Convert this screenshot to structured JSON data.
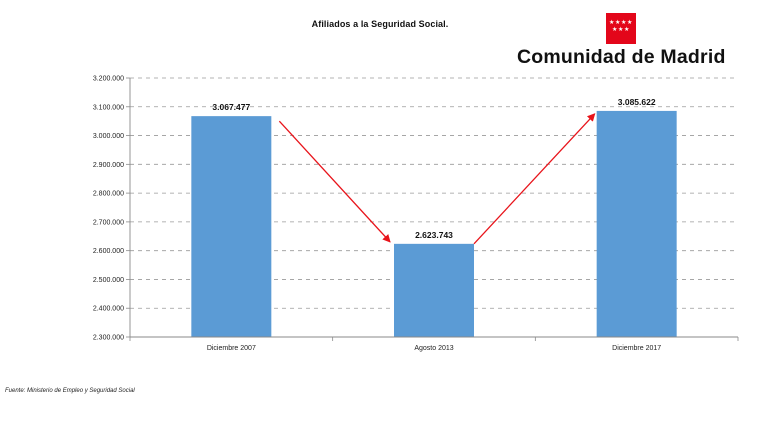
{
  "header": {
    "logo_text": "Comunidad de Madrid",
    "logo_flag_color": "#e3061a",
    "logo_icon": "madrid-flag-icon"
  },
  "chart_data": {
    "type": "bar",
    "title": "Afiliados a la Seguridad Social.",
    "xlabel": "",
    "ylabel": "",
    "categories": [
      "Diciembre 2007",
      "Agosto 2013",
      "Diciembre 2017"
    ],
    "values": [
      3067477,
      2623743,
      3085622
    ],
    "data_labels": [
      "3.067.477",
      "2.623.743",
      "3.085.622"
    ],
    "ylim": [
      2300000,
      3200000
    ],
    "yticks": [
      2300000,
      2400000,
      2500000,
      2600000,
      2700000,
      2800000,
      2900000,
      3000000,
      3100000,
      3200000
    ],
    "ytick_labels": [
      "2.300.000",
      "2.400.000",
      "2.500.000",
      "2.600.000",
      "2.700.000",
      "2.800.000",
      "2.900.000",
      "3.000.000",
      "3.100.000",
      "3.200.000"
    ],
    "grid": true,
    "bar_color": "#5b9bd5",
    "arrow_color": "#e8141b",
    "annotations": [
      "arrow-down-from-first-to-second",
      "arrow-up-from-second-to-third"
    ]
  },
  "footer": {
    "source": "Fuente: Ministerio de Empleo y Seguridad Social"
  }
}
